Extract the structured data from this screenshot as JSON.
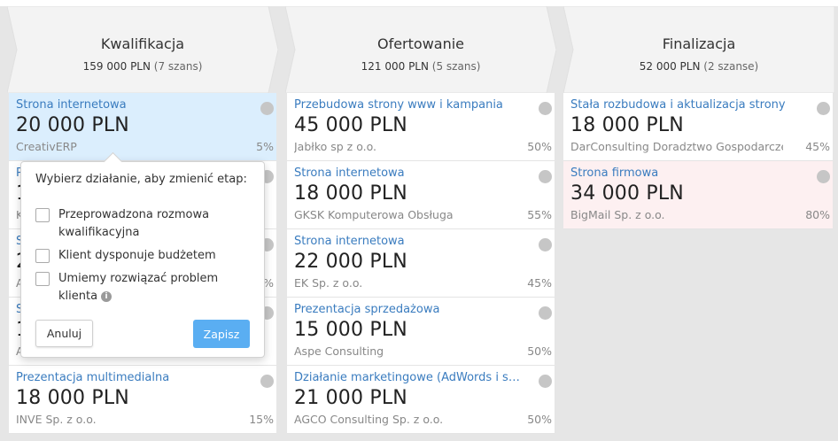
{
  "stages": [
    {
      "title": "Kwalifikacja",
      "amount": "159 000 PLN",
      "count": "(7 szans)",
      "cards": [
        {
          "title": "Strona internetowa",
          "amount": "20 000 PLN",
          "company": "CreativERP",
          "prob": "5%",
          "style": "selected"
        },
        {
          "title": "P",
          "amount": "1",
          "company": "K",
          "prob": "",
          "style": "normal"
        },
        {
          "title": "S",
          "amount": "2",
          "company": "A",
          "prob": "%",
          "style": "normal"
        },
        {
          "title": "S",
          "amount": "1",
          "company": "A",
          "prob": "",
          "style": "normal"
        },
        {
          "title": "Prezentacja multimedialna",
          "amount": "18 000 PLN",
          "company": "INVE Sp. z o.o.",
          "prob": "15%",
          "style": "normal"
        }
      ]
    },
    {
      "title": "Ofertowanie",
      "amount": "121 000 PLN",
      "count": "(5 szans)",
      "cards": [
        {
          "title": "Przebudowa strony www i kampania",
          "amount": "45 000 PLN",
          "company": "Jabłko sp z o.o.",
          "prob": "50%",
          "style": "normal"
        },
        {
          "title": "Strona internetowa",
          "amount": "18 000 PLN",
          "company": "GKSK Komputerowa Obsługa",
          "prob": "55%",
          "style": "normal"
        },
        {
          "title": "Strona internetowa",
          "amount": "22 000 PLN",
          "company": "EK Sp. z o.o.",
          "prob": "45%",
          "style": "normal"
        },
        {
          "title": "Prezentacja sprzedażowa",
          "amount": "15 000 PLN",
          "company": "Aspe Consulting",
          "prob": "50%",
          "style": "normal"
        },
        {
          "title": "Działanie marketingowe (AdWords i soc...",
          "amount": "21 000 PLN",
          "company": "AGCO Consulting Sp. z o.o.",
          "prob": "50%",
          "style": "normal"
        }
      ]
    },
    {
      "title": "Finalizacja",
      "amount": "52 000 PLN",
      "count": "(2 szanse)",
      "cards": [
        {
          "title": "Stała rozbudowa i aktualizacja strony",
          "amount": "18 000 PLN",
          "company": "DarConsulting Doradztwo Gospodarcze",
          "prob": "45%",
          "style": "normal"
        },
        {
          "title": "Strona firmowa",
          "amount": "34 000 PLN",
          "company": "BigMail Sp. z o.o.",
          "prob": "80%",
          "style": "pink"
        }
      ]
    }
  ],
  "popover": {
    "title": "Wybierz działanie, aby zmienić etap:",
    "options": [
      {
        "label": "Przeprowadzona rozmowa kwalifikacyjna",
        "checked": false
      },
      {
        "label": "Klient dysponuje budżetem",
        "checked": false
      },
      {
        "label": "Umiemy rozwiązać problem klienta",
        "checked": false,
        "info": true
      }
    ],
    "cancel_label": "Anuluj",
    "save_label": "Zapisz",
    "info_glyph": "i"
  },
  "colors": {
    "accent": "#5aaef2",
    "link": "#3a7cbf",
    "selected_card": "#dbeefd",
    "warning_card": "#fdf0f1"
  }
}
